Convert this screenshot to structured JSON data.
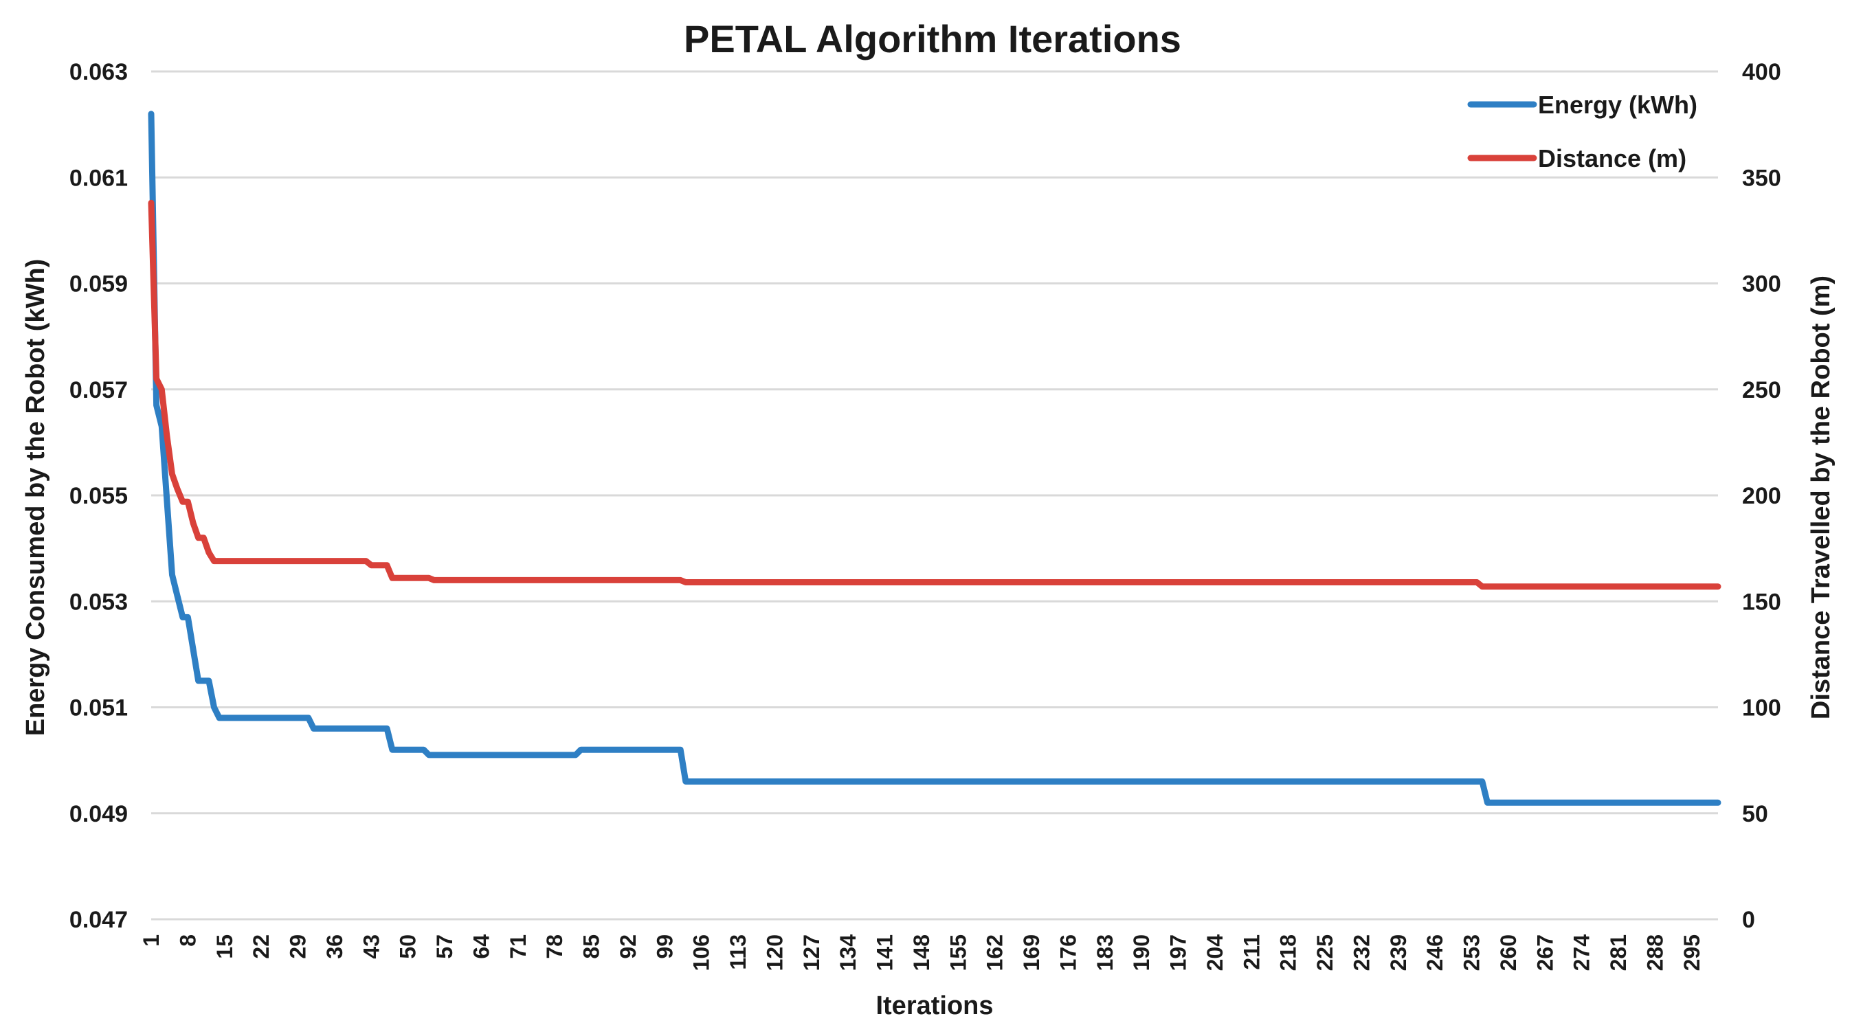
{
  "chart_data": {
    "type": "line",
    "title": "PETAL Algorithm Iterations",
    "xlabel": "Iterations",
    "ylabel_left": "Energy Consumed by the Robot (kWh)",
    "ylabel_right": "Distance Travelled by the Robot (m)",
    "ylim_left": [
      0.047,
      0.063
    ],
    "ylim_right": [
      0,
      400
    ],
    "yticks_left": [
      "0.047",
      "0.049",
      "0.051",
      "0.053",
      "0.055",
      "0.057",
      "0.059",
      "0.061",
      "0.063"
    ],
    "yticks_right": [
      "0",
      "50",
      "100",
      "150",
      "200",
      "250",
      "300",
      "350",
      "400"
    ],
    "xticks": [
      "1",
      "8",
      "15",
      "22",
      "29",
      "36",
      "43",
      "50",
      "57",
      "64",
      "71",
      "78",
      "85",
      "92",
      "99",
      "106",
      "113",
      "120",
      "127",
      "134",
      "141",
      "148",
      "155",
      "162",
      "169",
      "176",
      "183",
      "190",
      "197",
      "204",
      "211",
      "218",
      "225",
      "232",
      "239",
      "246",
      "253",
      "260",
      "267",
      "274",
      "281",
      "288",
      "295"
    ],
    "xlim": [
      1,
      300
    ],
    "grid": true,
    "legend_position": "top-right",
    "series": [
      {
        "name": "Energy (kWh)",
        "axis": "left",
        "color": "#2e7fc4",
        "x": [
          1,
          2,
          3,
          4,
          5,
          6,
          7,
          8,
          9,
          10,
          11,
          12,
          13,
          14,
          15,
          31,
          32,
          46,
          47,
          53,
          54,
          82,
          83,
          102,
          103,
          255,
          256,
          300
        ],
        "y": [
          0.0622,
          0.0567,
          0.0563,
          0.0549,
          0.0535,
          0.0531,
          0.0527,
          0.0527,
          0.0521,
          0.0515,
          0.0515,
          0.0515,
          0.051,
          0.0508,
          0.0508,
          0.0508,
          0.0506,
          0.0506,
          0.0502,
          0.0502,
          0.0501,
          0.0501,
          0.0502,
          0.0502,
          0.0496,
          0.0496,
          0.0492,
          0.0492
        ]
      },
      {
        "name": "Distance (m)",
        "axis": "right",
        "color": "#d9413a",
        "x": [
          1,
          2,
          3,
          4,
          5,
          6,
          7,
          8,
          9,
          10,
          11,
          12,
          13,
          14,
          15,
          42,
          43,
          46,
          47,
          54,
          55,
          102,
          103,
          254,
          255,
          300
        ],
        "y": [
          338,
          255,
          250,
          228,
          210,
          203,
          197,
          197,
          187,
          180,
          180,
          173,
          169,
          169,
          169,
          169,
          167,
          167,
          161,
          161,
          160,
          160,
          159,
          159,
          157,
          157
        ]
      }
    ]
  }
}
